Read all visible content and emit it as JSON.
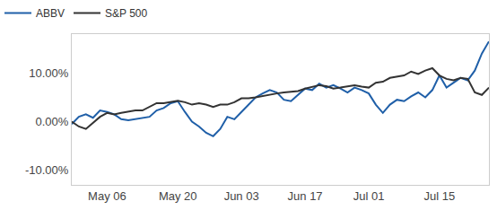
{
  "chart_data": {
    "type": "line",
    "categories": [
      null,
      null,
      null,
      null,
      null,
      "May 06",
      null,
      null,
      null,
      null,
      null,
      null,
      null,
      null,
      null,
      "May 20",
      null,
      null,
      null,
      null,
      null,
      null,
      null,
      null,
      "Jun 03",
      null,
      null,
      null,
      null,
      null,
      null,
      null,
      null,
      "Jun 17",
      null,
      null,
      null,
      null,
      null,
      null,
      null,
      null,
      "Jul 01",
      null,
      null,
      null,
      null,
      null,
      null,
      null,
      null,
      null,
      "Jul 15",
      null,
      null,
      null,
      null,
      null,
      null,
      null
    ],
    "series": [
      {
        "name": "ABBV",
        "color": "#1f5fa8",
        "values": [
          -0.5,
          1,
          1.5,
          0.8,
          2.3,
          2,
          1.5,
          0.5,
          0.3,
          0.5,
          0.8,
          1,
          2.3,
          2.8,
          3.8,
          4.2,
          2,
          0,
          -1,
          -2.3,
          -3,
          -1.5,
          1,
          0.5,
          2,
          3.5,
          5,
          5.8,
          6.5,
          6,
          4.5,
          4.2,
          5.5,
          6.8,
          6.5,
          7.8,
          7,
          7.5,
          6.8,
          6,
          7,
          6.5,
          5.8,
          3.5,
          1.8,
          3.5,
          4.5,
          4.2,
          5.2,
          6,
          5,
          6.5,
          9.5,
          7,
          8,
          9,
          8.5,
          10.5,
          14,
          16.5
        ]
      },
      {
        "name": "S&P 500",
        "color": "#333333",
        "values": [
          0,
          -1,
          -1.5,
          -0.3,
          1,
          1.8,
          1.5,
          1.8,
          2,
          2.3,
          2.3,
          3,
          3.8,
          3.8,
          4,
          4.3,
          4,
          3.5,
          3.8,
          3.5,
          3,
          3.5,
          3.5,
          4,
          4.8,
          4.8,
          5,
          5.3,
          5.5,
          5.8,
          6,
          6.2,
          6.3,
          6.8,
          7.2,
          7.5,
          7.3,
          6.8,
          7,
          7.3,
          7.5,
          7.2,
          7,
          8,
          8.2,
          9,
          9.3,
          9.5,
          10.3,
          9.8,
          10.5,
          11,
          9.5,
          8.8,
          8.5,
          9,
          8.8,
          6,
          5.5,
          7
        ]
      }
    ],
    "ylim": [
      -13,
      18
    ],
    "yticks": [
      {
        "value": -10,
        "label": "-10.00%"
      },
      {
        "value": 0,
        "label": "0.00%"
      },
      {
        "value": 10,
        "label": "10.00%"
      }
    ],
    "grid": false,
    "legend": "top-left"
  }
}
